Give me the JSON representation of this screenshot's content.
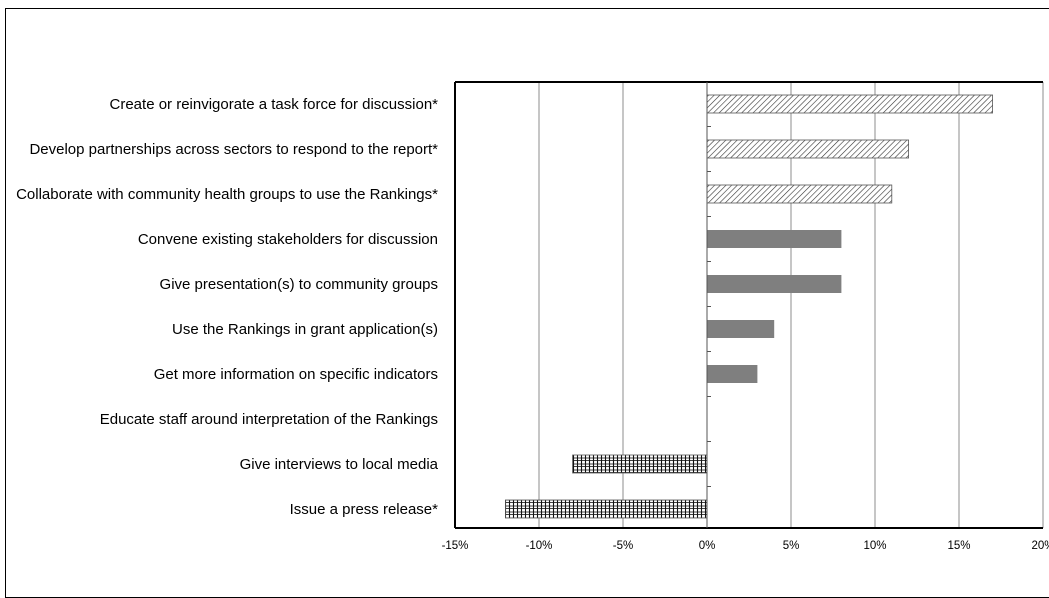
{
  "chart_data": {
    "type": "bar",
    "orientation": "horizontal",
    "title": "",
    "xlabel": "",
    "ylabel": "",
    "xlim": [
      -15,
      20
    ],
    "x_ticks": [
      -15,
      -10,
      -5,
      0,
      5,
      10,
      15,
      20
    ],
    "x_tick_labels": [
      "-15%",
      "-10%",
      "-5%",
      "0%",
      "5%",
      "10%",
      "15%",
      "20%"
    ],
    "grid": "vertical",
    "categories": [
      "Create or reinvigorate a task force for discussion*",
      "Develop partnerships across sectors to respond to the report*",
      "Collaborate with community health groups to use the Rankings*",
      "Convene existing stakeholders for discussion",
      "Give presentation(s) to community groups",
      "Use the Rankings in grant application(s)",
      "Get more information on specific indicators",
      "Educate staff around interpretation of the Rankings",
      "Give interviews to local media",
      "Issue a press release*"
    ],
    "values": [
      17,
      12,
      11,
      8,
      8,
      4,
      3,
      0,
      -8,
      -12
    ],
    "fills": [
      "diagonal-hatch",
      "diagonal-hatch",
      "diagonal-hatch",
      "solid",
      "solid",
      "solid",
      "solid",
      "solid",
      "cross-hatch",
      "cross-hatch"
    ],
    "colors": {
      "solid": "#7f7f7f",
      "hatch_line": "#333333",
      "grid": "#8c8c8c",
      "axis": "#000000"
    }
  }
}
